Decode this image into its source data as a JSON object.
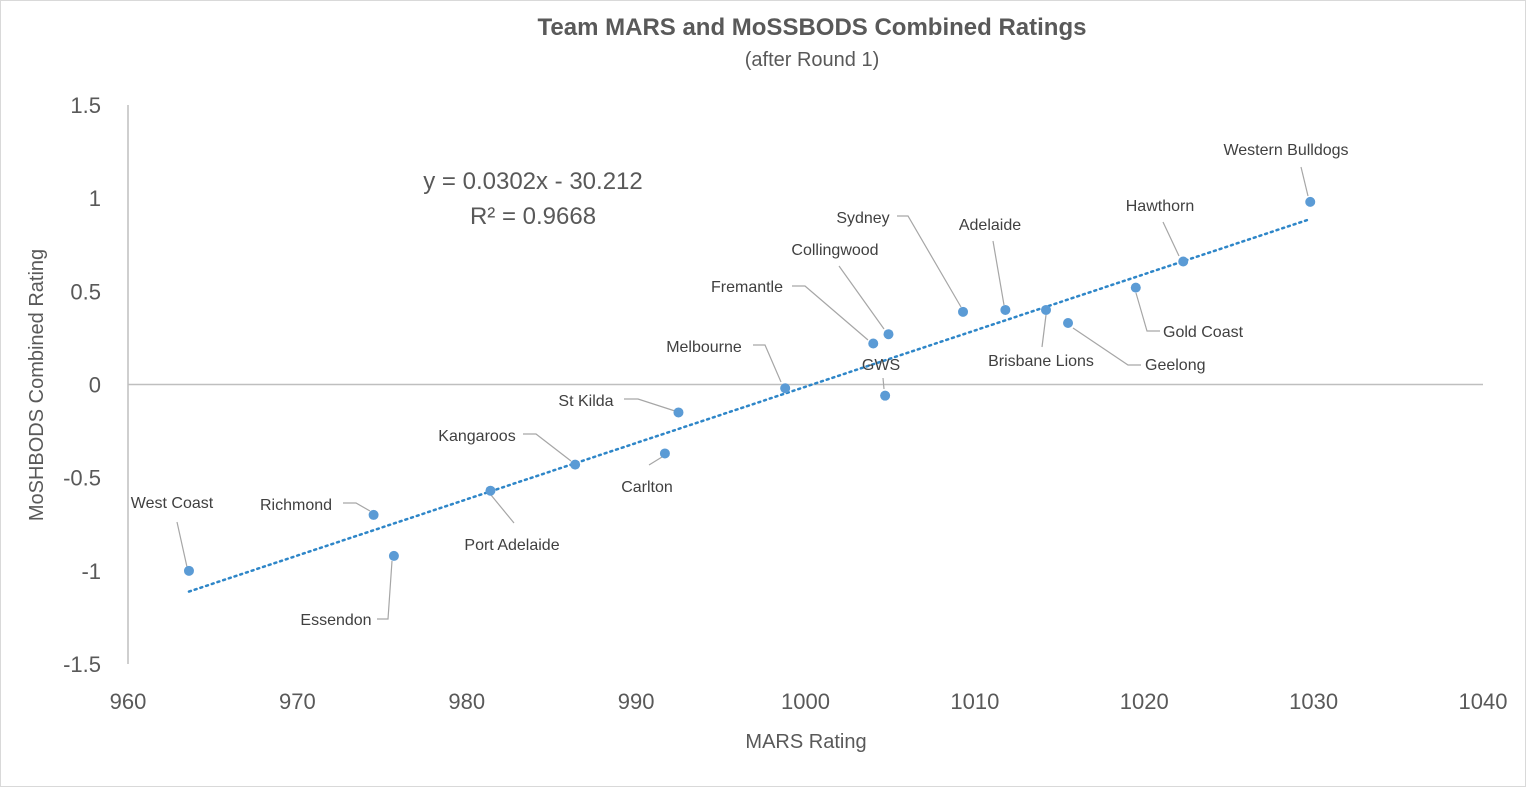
{
  "chart_data": {
    "type": "scatter",
    "title": "Team MARS and MoSSBODS Combined Ratings",
    "subtitle": "(after Round 1)",
    "xlabel": "MARS Rating",
    "ylabel": "MoSHBODS Combined Rating",
    "xlim": [
      960,
      1040
    ],
    "ylim": [
      -1.5,
      1.5
    ],
    "x_ticks": [
      "960",
      "970",
      "980",
      "990",
      "1000",
      "1010",
      "1020",
      "1030",
      "1040"
    ],
    "y_ticks": [
      "1.5",
      "1",
      "0.5",
      "0",
      "-0.5",
      "-1",
      "-1.5"
    ],
    "grid": false,
    "marker_color": "#5b9bd5",
    "trendline": {
      "type": "linear",
      "slope": 0.0302,
      "intercept": -30.212,
      "color": "#2e86c8",
      "style": "dotted",
      "equation_label": "y = 0.0302x - 30.212",
      "r2_label": "R² = 0.9668"
    },
    "points": [
      {
        "name": "Western Bulldogs",
        "x": 1029.8,
        "y": 0.98
      },
      {
        "name": "Hawthorn",
        "x": 1022.3,
        "y": 0.66
      },
      {
        "name": "Gold Coast",
        "x": 1019.5,
        "y": 0.52
      },
      {
        "name": "Geelong",
        "x": 1015.5,
        "y": 0.33
      },
      {
        "name": "Brisbane Lions",
        "x": 1014.2,
        "y": 0.4
      },
      {
        "name": "Adelaide",
        "x": 1011.8,
        "y": 0.4
      },
      {
        "name": "Sydney",
        "x": 1009.3,
        "y": 0.39
      },
      {
        "name": "Collingwood",
        "x": 1004.9,
        "y": 0.27
      },
      {
        "name": "Fremantle",
        "x": 1004.0,
        "y": 0.22
      },
      {
        "name": "GWS",
        "x": 1004.7,
        "y": -0.06
      },
      {
        "name": "Melbourne",
        "x": 998.8,
        "y": -0.02
      },
      {
        "name": "St Kilda",
        "x": 992.5,
        "y": -0.15
      },
      {
        "name": "Carlton",
        "x": 991.7,
        "y": -0.37
      },
      {
        "name": "Kangaroos",
        "x": 986.4,
        "y": -0.43
      },
      {
        "name": "Port Adelaide",
        "x": 981.4,
        "y": -0.57
      },
      {
        "name": "Richmond",
        "x": 974.5,
        "y": -0.7
      },
      {
        "name": "Essendon",
        "x": 975.7,
        "y": -0.92
      },
      {
        "name": "West Coast",
        "x": 963.6,
        "y": -1.0
      }
    ]
  }
}
